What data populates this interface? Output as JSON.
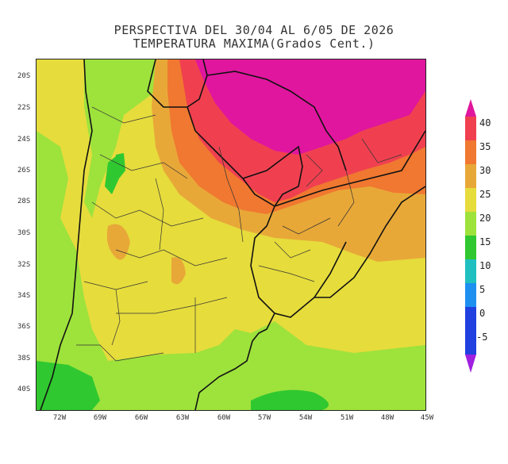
{
  "title": {
    "line1": "PERSPECTIVA DEL 30/04 AL 6/05 DE 2026",
    "line2": "TEMPERATURA MAXIMA(Grados Cent.)"
  },
  "axes": {
    "y_ticks": [
      "20S",
      "22S",
      "24S",
      "26S",
      "28S",
      "30S",
      "32S",
      "34S",
      "36S",
      "38S",
      "40S"
    ],
    "x_ticks": [
      "72W",
      "69W",
      "66W",
      "63W",
      "60W",
      "57W",
      "54W",
      "51W",
      "48W",
      "45W"
    ]
  },
  "colorbar": {
    "labels": [
      "40",
      "35",
      "30",
      "25",
      "20",
      "15",
      "10",
      "5",
      "0",
      "-5"
    ],
    "colors": {
      "above_40": "#e0169e",
      "35_40": "#f04050",
      "30_35": "#f07830",
      "25_30": "#e8a838",
      "20_25": "#e6dc3c",
      "15_20": "#9ee23c",
      "10_15": "#30c830",
      "5_10": "#20c0c0",
      "0_5": "#1e90f0",
      "m5_0": "#2040e0",
      "below_m5": "#a020e0"
    }
  }
}
